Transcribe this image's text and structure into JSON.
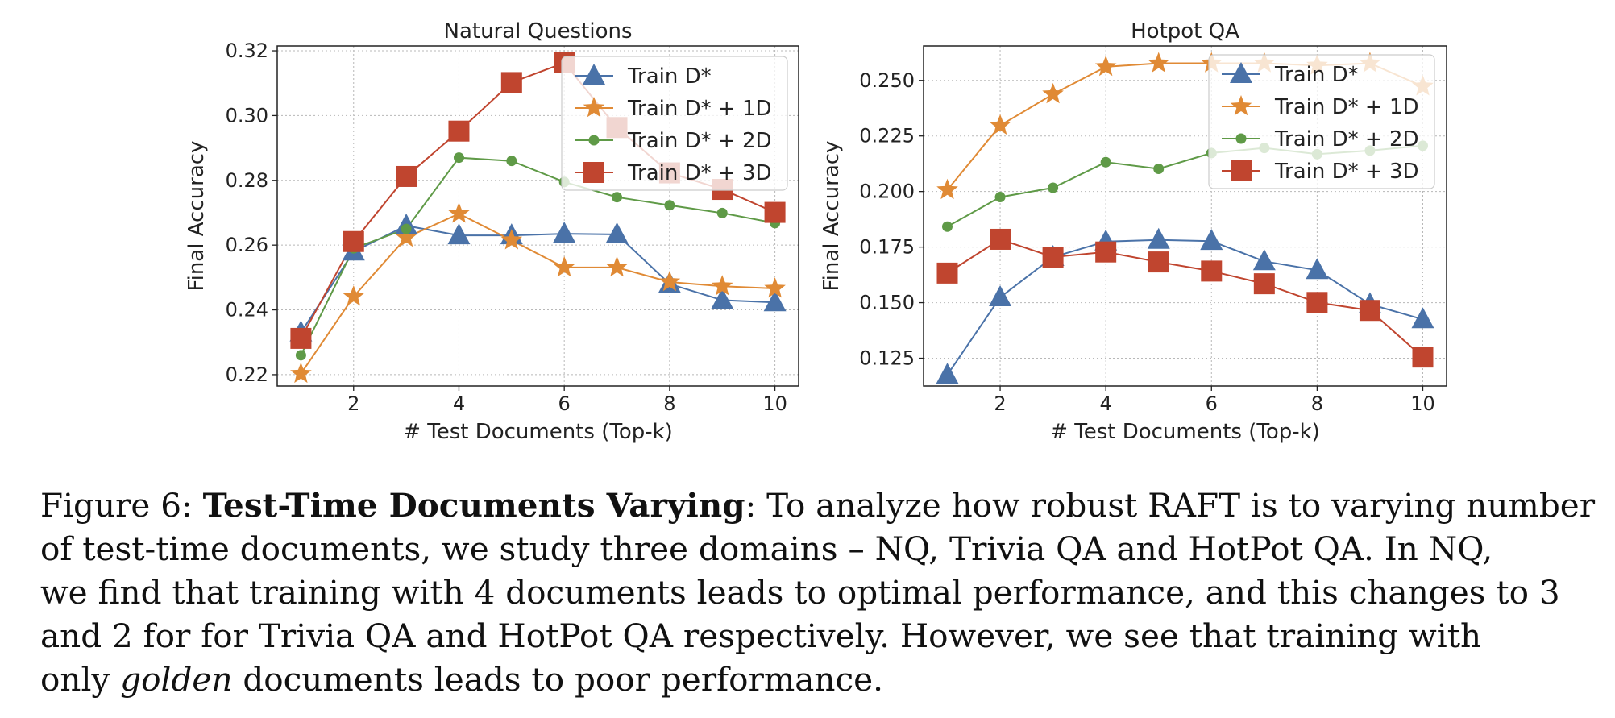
{
  "chart_data": [
    {
      "type": "line",
      "title": "Natural Questions",
      "xlabel": "# Test Documents (Top-k)",
      "ylabel": "Final Accuracy",
      "xlim": [
        0.55,
        10.45
      ],
      "ylim": [
        0.2165,
        0.3215
      ],
      "xticks": [
        2,
        4,
        6,
        8,
        10
      ],
      "xtick_labels": [
        "2",
        "4",
        "6",
        "8",
        "10"
      ],
      "yticks": [
        0.22,
        0.24,
        0.26,
        0.28,
        0.3,
        0.32
      ],
      "ytick_labels": [
        "0.22",
        "0.24",
        "0.26",
        "0.28",
        "0.30",
        "0.32"
      ],
      "grid": true,
      "legend_position": "top-right",
      "x": [
        1,
        2,
        3,
        4,
        5,
        6,
        7,
        8,
        9,
        10
      ],
      "series": [
        {
          "name": "Train D*",
          "color": "#4a72a8",
          "marker": "triangle",
          "values": [
            0.233,
            0.258,
            0.266,
            0.263,
            0.263,
            0.2635,
            0.2633,
            0.248,
            0.243,
            0.2423
          ]
        },
        {
          "name": "Train D* + 1D",
          "color": "#e08a35",
          "marker": "star",
          "values": [
            0.2203,
            0.2441,
            0.2623,
            0.2697,
            0.2615,
            0.2531,
            0.2531,
            0.2486,
            0.2473,
            0.2466
          ]
        },
        {
          "name": "Train D* + 2D",
          "color": "#5f9a47",
          "marker": "circle",
          "values": [
            0.226,
            0.259,
            0.265,
            0.287,
            0.286,
            0.2795,
            0.2748,
            0.2723,
            0.2699,
            0.2668
          ]
        },
        {
          "name": "Train D* + 3D",
          "color": "#c0452f",
          "marker": "square",
          "values": [
            0.2312,
            0.2611,
            0.2812,
            0.2952,
            0.3102,
            0.3163,
            0.2963,
            0.2823,
            0.2772,
            0.2701
          ]
        }
      ]
    },
    {
      "type": "line",
      "title": "Hotpot QA",
      "xlabel": "# Test Documents (Top-k)",
      "ylabel": "Final Accuracy",
      "xlim": [
        0.55,
        10.45
      ],
      "ylim": [
        0.1125,
        0.2655
      ],
      "xticks": [
        2,
        4,
        6,
        8,
        10
      ],
      "xtick_labels": [
        "2",
        "4",
        "6",
        "8",
        "10"
      ],
      "yticks": [
        0.125,
        0.15,
        0.175,
        0.2,
        0.225,
        0.25
      ],
      "ytick_labels": [
        "0.125",
        "0.150",
        "0.175",
        "0.200",
        "0.225",
        "0.250"
      ],
      "grid": true,
      "legend_position": "top-right",
      "x": [
        1,
        2,
        3,
        4,
        5,
        6,
        7,
        8,
        9,
        10
      ],
      "series": [
        {
          "name": "Train D*",
          "color": "#4a72a8",
          "marker": "triangle",
          "values": [
            0.1175,
            0.1524,
            0.1705,
            0.1775,
            0.1782,
            0.1777,
            0.1686,
            0.1646,
            0.1493,
            0.1425
          ]
        },
        {
          "name": "Train D* + 1D",
          "color": "#e08a35",
          "marker": "star",
          "values": [
            0.2007,
            0.2297,
            0.2438,
            0.2561,
            0.2577,
            0.2577,
            0.2577,
            0.2567,
            0.2577,
            0.2473
          ]
        },
        {
          "name": "Train D* + 2D",
          "color": "#5f9a47",
          "marker": "circle",
          "values": [
            0.1842,
            0.1975,
            0.2017,
            0.2132,
            0.2102,
            0.2173,
            0.2196,
            0.2168,
            0.2184,
            0.2206
          ]
        },
        {
          "name": "Train D* + 3D",
          "color": "#c0452f",
          "marker": "square",
          "values": [
            0.1633,
            0.1785,
            0.1705,
            0.1728,
            0.1683,
            0.1642,
            0.1585,
            0.1501,
            0.1465,
            0.1255
          ]
        }
      ]
    }
  ],
  "caption": {
    "figure_label": "Figure 6:",
    "title": "Test-Time Documents Varying",
    "line1_rest": ": To analyze how robust RAFT is to varying number",
    "line2": "of test-time documents, we study three domains – NQ, Trivia QA and HotPot QA. In NQ,",
    "line3": "we find that training with 4 documents leads to optimal performance, and this changes to 3",
    "line4": "and 2 for for Trivia QA and HotPot QA respectively. However, we see that training with",
    "line5_start": "only",
    "line5_italic": "golden",
    "line5_end": "documents leads to poor performance."
  }
}
